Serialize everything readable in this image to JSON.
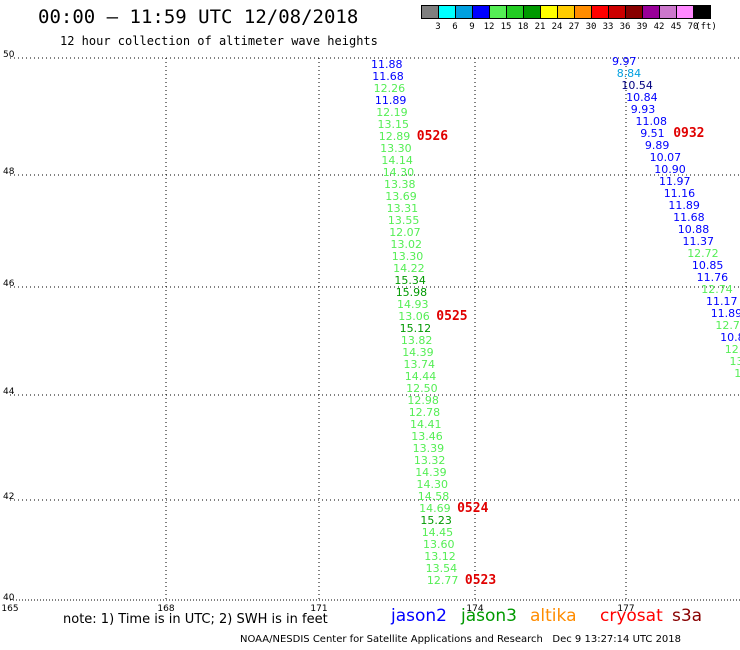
{
  "header": {
    "title": "00:00 – 11:59 UTC 12/08/2018",
    "subtitle": "12 hour collection of altimeter wave heights"
  },
  "colorbar": {
    "unit": "(ft)",
    "bins": [
      {
        "label": "3",
        "color": "#7f7f7f"
      },
      {
        "label": "6",
        "color": "#00ffff"
      },
      {
        "label": "9",
        "color": "#00a0e0"
      },
      {
        "label": "12",
        "color": "#0000ff"
      },
      {
        "label": "15",
        "color": "#55ee55"
      },
      {
        "label": "18",
        "color": "#22cc22"
      },
      {
        "label": "21",
        "color": "#009900"
      },
      {
        "label": "24",
        "color": "#ffff00"
      },
      {
        "label": "27",
        "color": "#ffcc00"
      },
      {
        "label": "30",
        "color": "#ff8c00"
      },
      {
        "label": "33",
        "color": "#ff0000"
      },
      {
        "label": "36",
        "color": "#cc0000"
      },
      {
        "label": "39",
        "color": "#880000"
      },
      {
        "label": "42",
        "color": "#990099"
      },
      {
        "label": "45",
        "color": "#cc77cc"
      },
      {
        "label": "70",
        "color": "#ff88ff"
      },
      {
        "label": "",
        "color": "#000000"
      }
    ]
  },
  "map": {
    "lon_ticks": [
      "165",
      "168",
      "171",
      "174",
      "177"
    ],
    "lat_ticks": [
      "50",
      "48",
      "46",
      "44",
      "42",
      "40"
    ]
  },
  "tracks": {
    "west": {
      "values": [
        "11.88",
        "11.68",
        "12.26",
        "11.89",
        "12.19",
        "13.15",
        "12.89",
        "13.30",
        "14.14",
        "14.30",
        "13.38",
        "13.69",
        "13.31",
        "13.55",
        "12.07",
        "13.02",
        "13.30",
        "14.22",
        "15.34",
        "15.98",
        "14.93",
        "13.06",
        "15.12",
        "13.82",
        "14.39",
        "13.74",
        "14.44",
        "12.50",
        "12.98",
        "12.78",
        "14.41",
        "13.46",
        "13.39",
        "13.32",
        "14.39",
        "14.30",
        "14.58",
        "14.69",
        "15.23",
        "14.45",
        "13.60",
        "13.12",
        "13.54",
        "12.77"
      ],
      "colors": [
        "#0000ff",
        "#0000ff",
        "#55ee55",
        "#0000ff",
        "#55ee55",
        "#55ee55",
        "#55ee55",
        "#55ee55",
        "#55ee55",
        "#55ee55",
        "#55ee55",
        "#55ee55",
        "#55ee55",
        "#55ee55",
        "#55ee55",
        "#55ee55",
        "#55ee55",
        "#55ee55",
        "#009900",
        "#009900",
        "#55ee55",
        "#55ee55",
        "#009900",
        "#55ee55",
        "#55ee55",
        "#55ee55",
        "#55ee55",
        "#55ee55",
        "#55ee55",
        "#55ee55",
        "#55ee55",
        "#55ee55",
        "#55ee55",
        "#55ee55",
        "#55ee55",
        "#55ee55",
        "#55ee55",
        "#55ee55",
        "#009900",
        "#55ee55",
        "#55ee55",
        "#55ee55",
        "#55ee55",
        "#55ee55"
      ],
      "times": [
        {
          "label": "0526",
          "row": 6
        },
        {
          "label": "0525",
          "row": 21
        },
        {
          "label": "0524",
          "row": 37
        },
        {
          "label": "0523",
          "row": 43
        }
      ]
    },
    "east": {
      "values": [
        "9.97",
        "8.84",
        "10.54",
        "10.84",
        "9.93",
        "11.08",
        "9.51",
        "9.89",
        "10.07",
        "10.90",
        "11.97",
        "11.16",
        "11.89",
        "11.68",
        "10.88",
        "11.37",
        "12.72",
        "10.85",
        "11.76",
        "12.74",
        "11.17",
        "11.89",
        "12.73",
        "10.8",
        "12.",
        "13",
        "1"
      ],
      "colors": [
        "#0000ff",
        "#00a0e0",
        "#000080",
        "#0000ff",
        "#0000ff",
        "#0000ff",
        "#0000ff",
        "#0000ff",
        "#0000ff",
        "#0000ff",
        "#0000ff",
        "#0000ff",
        "#0000ff",
        "#0000ff",
        "#0000ff",
        "#0000ff",
        "#55ee55",
        "#0000ff",
        "#0000ff",
        "#55ee55",
        "#0000ff",
        "#0000ff",
        "#55ee55",
        "#0000ff",
        "#55ee55",
        "#55ee55",
        "#55ee55"
      ],
      "times": [
        {
          "label": "0932",
          "row": 6
        }
      ]
    }
  },
  "footer": {
    "note": "note: 1) Time is in UTC; 2) SWH is in feet",
    "legend": [
      {
        "label": "jason2",
        "color": "#0000ff"
      },
      {
        "label": "jason3",
        "color": "#009900"
      },
      {
        "label": "altika",
        "color": "#ff8c00"
      },
      {
        "label": "cryosat",
        "color": "#ff0000"
      },
      {
        "label": "s3a",
        "color": "#880000"
      }
    ],
    "credit": "NOAA/NESDIS Center for Satellite Applications and Research",
    "timestamp": "Dec  9 13:27:14 UTC 2018"
  }
}
